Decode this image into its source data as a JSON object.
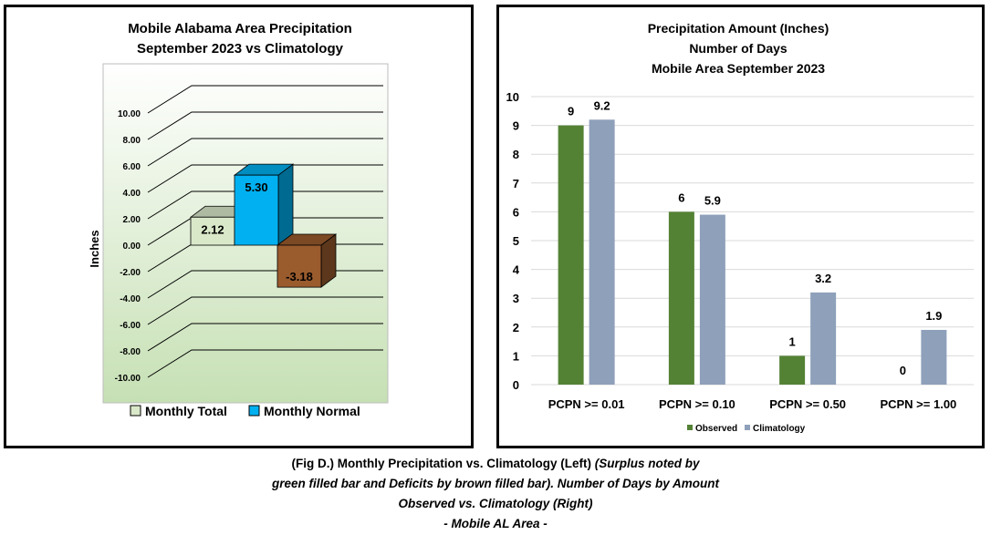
{
  "chart_data": [
    {
      "type": "bar",
      "title": "Mobile Alabama Area Precipitation",
      "subtitle": "September 2023 vs Climatology",
      "ylabel": "Inches",
      "ylim": [
        -10,
        10
      ],
      "yticks": [
        "10.00",
        "8.00",
        "6.00",
        "4.00",
        "2.00",
        "0.00",
        "-2.00",
        "-4.00",
        "-6.00",
        "-8.00",
        "-10.00"
      ],
      "series": [
        {
          "name": "Monthly Total",
          "value": 2.12,
          "label": "2.12",
          "color": "#d9e8c9"
        },
        {
          "name": "Monthly Normal",
          "value": 5.3,
          "label": "5.30",
          "color": "#00b0f0"
        },
        {
          "name": "",
          "value": -3.18,
          "label": "-3.18",
          "color": "#9a5b2d"
        }
      ],
      "legend": [
        "Monthly Total",
        "Monthly Normal"
      ],
      "legend_position": "bottom",
      "three_d": true
    },
    {
      "type": "bar",
      "title": "Precipitation Amount (Inches)",
      "subtitle": "Number of Days",
      "subtitle2": "Mobile Area September 2023",
      "categories": [
        "PCPN >= 0.01",
        "PCPN >= 0.10",
        "PCPN >= 0.50",
        "PCPN >= 1.00"
      ],
      "series": [
        {
          "name": "Observed",
          "values": [
            9,
            6,
            1,
            0
          ],
          "labels": [
            "9",
            "6",
            "1",
            "0"
          ],
          "color": "#548235"
        },
        {
          "name": "Climatology",
          "values": [
            9.2,
            5.9,
            3.2,
            1.9
          ],
          "labels": [
            "9.2",
            "5.9",
            "3.2",
            "1.9"
          ],
          "color": "#8ea0ba"
        }
      ],
      "ylim": [
        0,
        10
      ],
      "yticks": [
        "0",
        "1",
        "2",
        "3",
        "4",
        "5",
        "6",
        "7",
        "8",
        "9",
        "10"
      ],
      "grid": true,
      "legend_position": "bottom"
    }
  ],
  "caption": {
    "line1_bold": "(Fig D.) Monthly Precipitation vs. Climatology (Left)",
    "line1_italic": "(Surplus noted by",
    "line2": "green filled bar and Deficits by brown filled bar). Number of Days by Amount",
    "line3": "Observed vs. Climatology (Right)",
    "line4": "- Mobile AL Area -"
  }
}
